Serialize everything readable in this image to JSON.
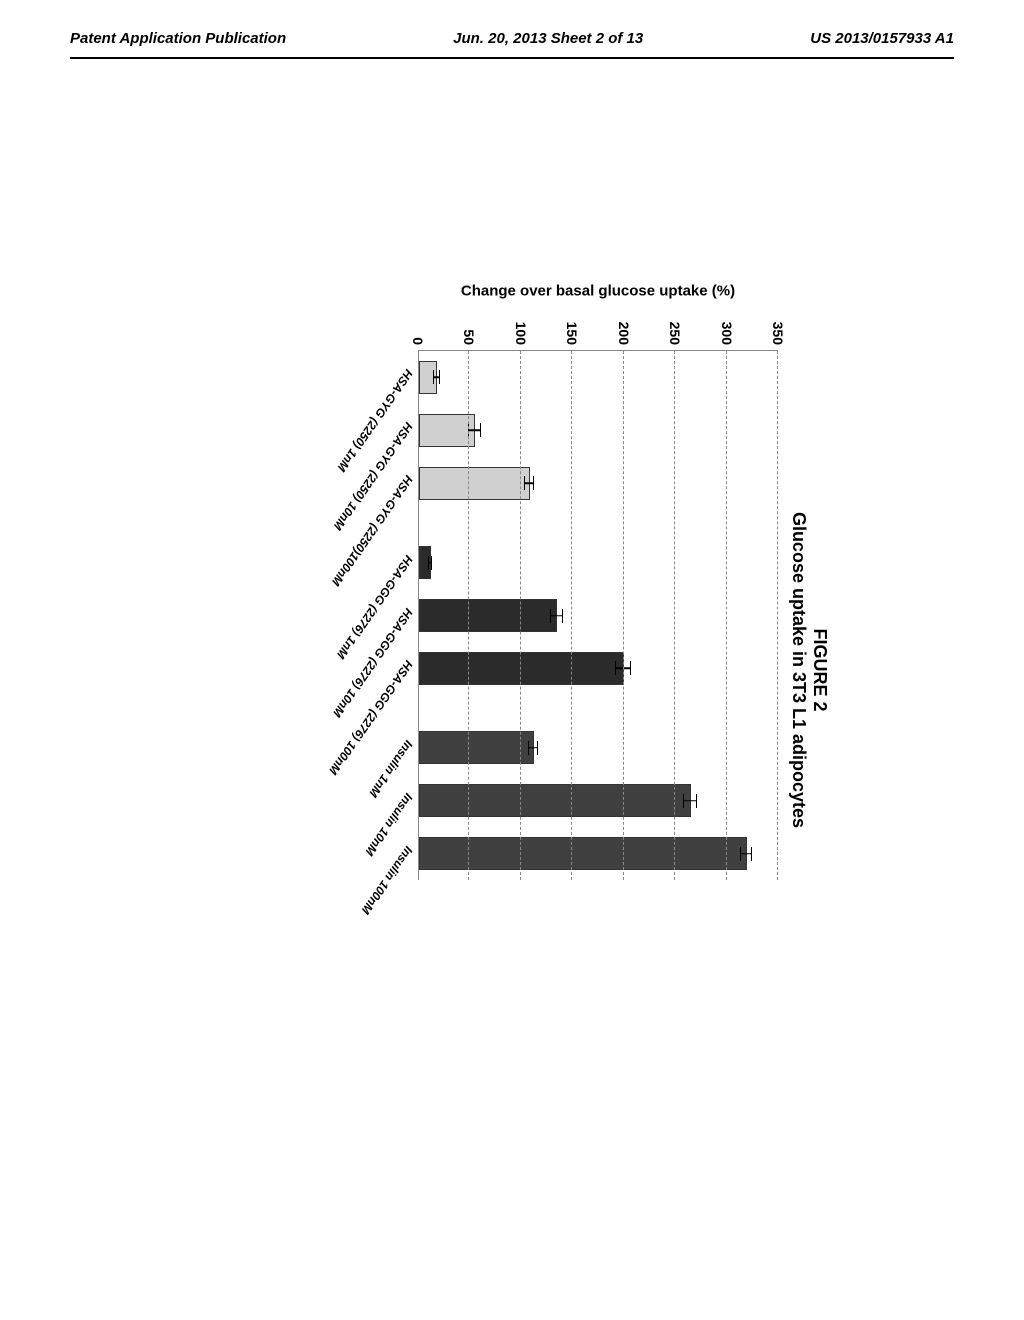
{
  "header": {
    "left": "Patent Application Publication",
    "center": "Jun. 20, 2013  Sheet 2 of 13",
    "right": "US 2013/0157933 A1"
  },
  "figure_label": "FIGURE 2",
  "chart": {
    "type": "bar",
    "title": "Glucose uptake in 3T3 L1 adipocytes",
    "ylabel": "Change over basal glucose uptake (%)",
    "ylim": [
      0,
      350
    ],
    "ytick_step": 50,
    "yticks": [
      0,
      50,
      100,
      150,
      200,
      250,
      300,
      350
    ],
    "background_color": "#ffffff",
    "grid_color": "#888888",
    "axis_color": "#888888",
    "label_fontsize": 15,
    "tick_fontsize": 14,
    "title_fontsize": 18,
    "bar_width": 0.62,
    "groups": [
      {
        "items": [
          {
            "label": "HSA-GYG (2250) 1nM",
            "value": 18,
            "error": 3,
            "color": "#d0d0d0"
          },
          {
            "label": "HSA-GYG (2250) 10nM",
            "value": 55,
            "error": 6,
            "color": "#d0d0d0"
          },
          {
            "label": "HSA-GYG (2250)100nM",
            "value": 108,
            "error": 5,
            "color": "#d0d0d0"
          }
        ]
      },
      {
        "items": [
          {
            "label": "HSA-GGG (2276) 1nM",
            "value": 12,
            "error": 2,
            "color": "#2b2b2b"
          },
          {
            "label": "HSA-GGG (2276) 10nM",
            "value": 135,
            "error": 6,
            "color": "#2b2b2b"
          },
          {
            "label": "HSA-GGG (2276) 100nM",
            "value": 200,
            "error": 8,
            "color": "#2b2b2b"
          }
        ]
      },
      {
        "items": [
          {
            "label": "Insulin 1nM",
            "value": 112,
            "error": 5,
            "color": "#404040"
          },
          {
            "label": "Insulin 10nM",
            "value": 265,
            "error": 7,
            "color": "#404040"
          },
          {
            "label": "Insulin 100nM",
            "value": 320,
            "error": 6,
            "color": "#404040"
          }
        ]
      }
    ]
  }
}
